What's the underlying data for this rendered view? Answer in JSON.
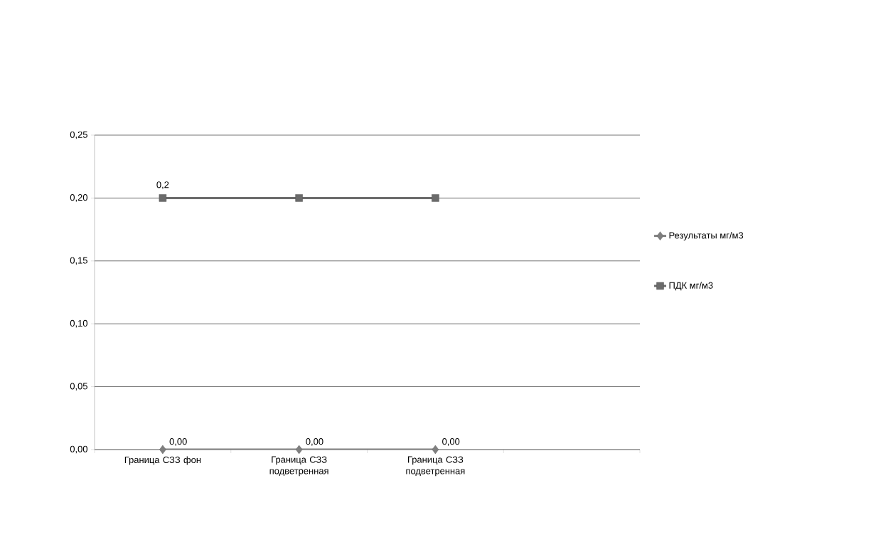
{
  "chart_data": {
    "type": "line",
    "categories": [
      "Граница СЗЗ фон",
      "Граница СЗЗ подветренная",
      "Граница СЗЗ подветренная",
      null
    ],
    "series": [
      {
        "name": "Результаты мг/м3",
        "color": "#7f7f7f",
        "marker": "diamond",
        "values": [
          0,
          0,
          0,
          null
        ],
        "value_labels": [
          "0,00",
          "0,00",
          "0,00",
          null
        ]
      },
      {
        "name": "ПДК мг/м3",
        "color": "#6b6b6b",
        "marker": "square",
        "values": [
          0.2,
          0.2,
          0.2,
          null
        ],
        "value_labels": [
          "0,2",
          null,
          null,
          null
        ]
      }
    ],
    "ylim": [
      0,
      0.25
    ],
    "yticks": [
      {
        "value": 0,
        "label": "0,00"
      },
      {
        "value": 0.05,
        "label": "0,05"
      },
      {
        "value": 0.1,
        "label": "0,10"
      },
      {
        "value": 0.15,
        "label": "0,15"
      },
      {
        "value": 0.2,
        "label": "0,20"
      },
      {
        "value": 0.25,
        "label": "0,25"
      }
    ],
    "grid": "y",
    "legend": "right",
    "line_style": "solid"
  }
}
